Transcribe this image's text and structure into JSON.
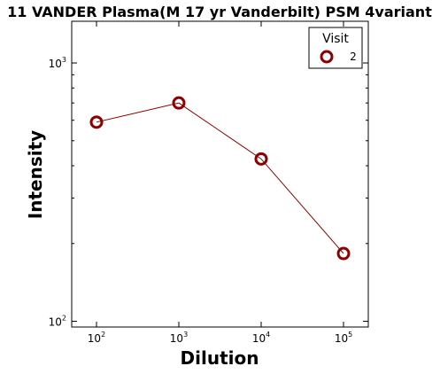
{
  "chart_data": {
    "type": "line",
    "title": "11 VANDER Plasma(M 17 yr Vanderbilt) PSM 4variant",
    "xlabel": "Dilution",
    "ylabel": "Intensity",
    "xscale": "log",
    "yscale": "log",
    "xlim": [
      50,
      200000
    ],
    "ylim": [
      95,
      1450
    ],
    "x_ticks": [
      {
        "base": "10",
        "exp": "2",
        "value": 100
      },
      {
        "base": "10",
        "exp": "3",
        "value": 1000
      },
      {
        "base": "10",
        "exp": "4",
        "value": 10000
      },
      {
        "base": "10",
        "exp": "5",
        "value": 100000
      }
    ],
    "y_ticks": [
      {
        "base": "10",
        "exp": "2",
        "value": 100
      },
      {
        "base": "10",
        "exp": "3",
        "value": 1000
      }
    ],
    "legend": {
      "title": "Visit",
      "placement": "top-right"
    },
    "series": [
      {
        "name": "2",
        "color": "#8b0000",
        "marker": "circle-open",
        "x": [
          100,
          1000,
          10000,
          100000
        ],
        "y": [
          590,
          700,
          425,
          183
        ]
      }
    ]
  }
}
